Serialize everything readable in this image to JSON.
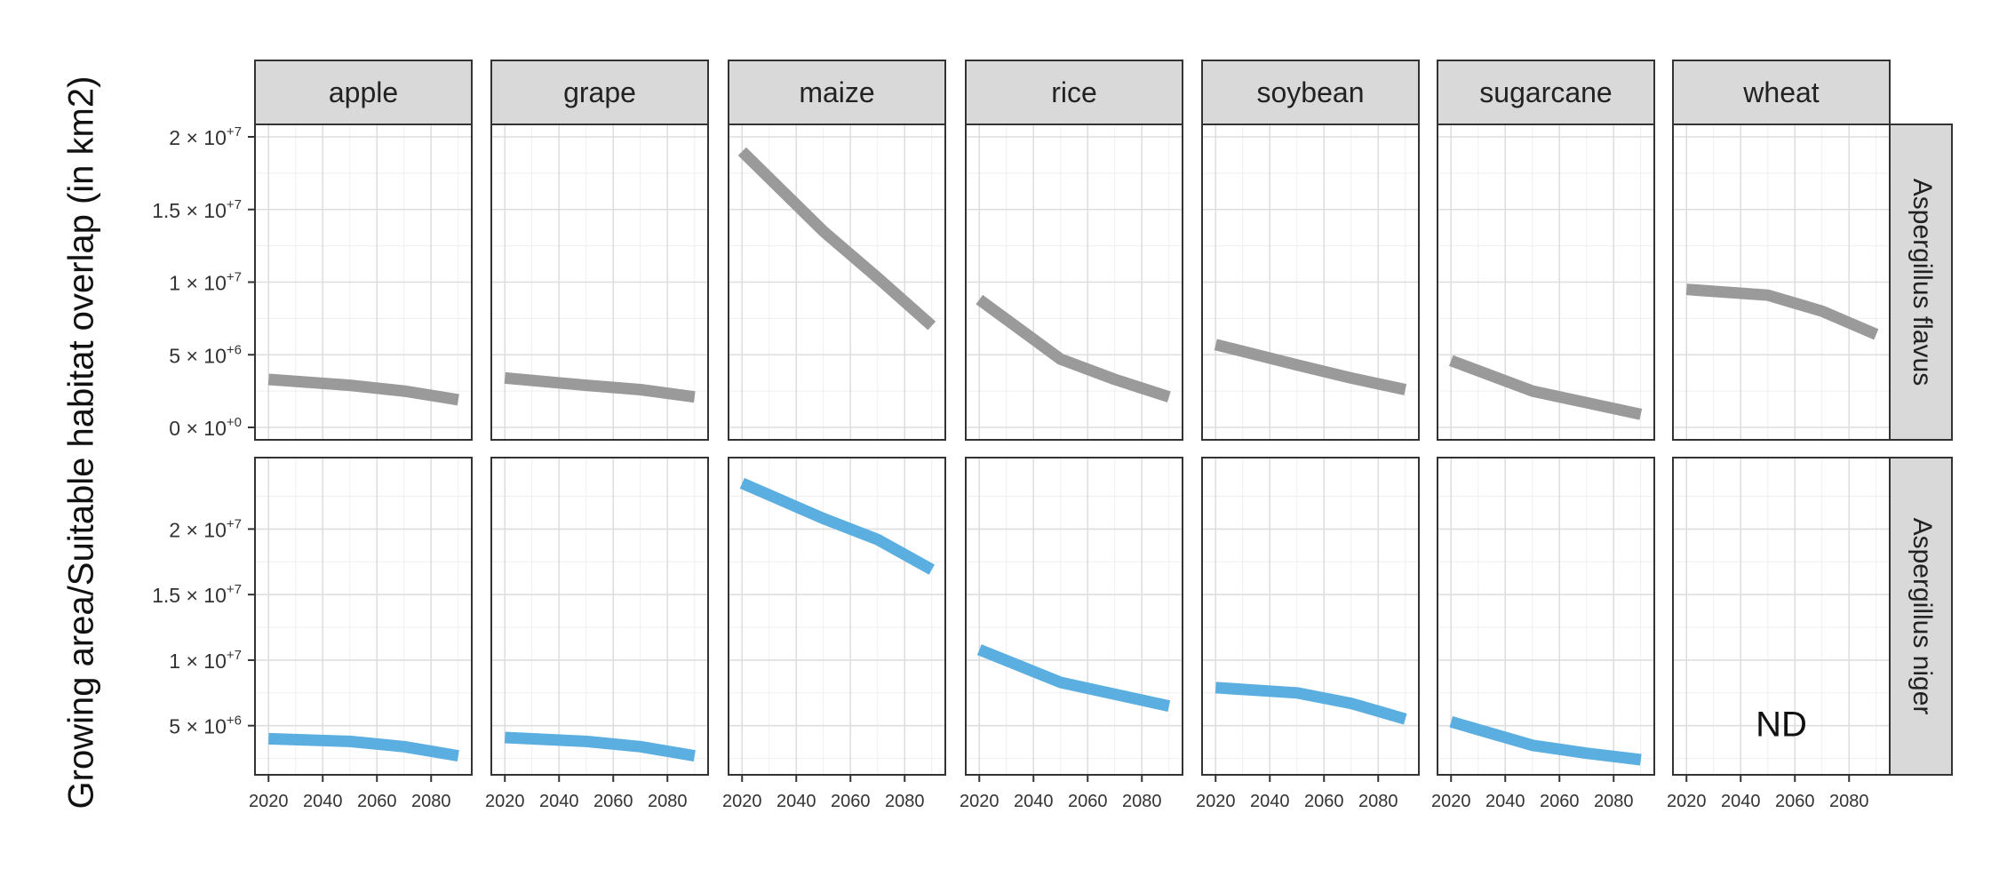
{
  "chart_data": {
    "type": "line",
    "ylabel": "Growing area/Suitable habitat overlap (in km2)",
    "xlabel": "",
    "crops": [
      "apple",
      "grape",
      "maize",
      "rice",
      "soybean",
      "sugarcane",
      "wheat"
    ],
    "x_ticks": [
      "2020",
      "2040",
      "2060",
      "2080"
    ],
    "xlim": [
      2015,
      2095
    ],
    "grid": true,
    "rows": [
      {
        "name": "Aspergillus flavus",
        "color": "#9a9a9a",
        "ylim": [
          0,
          20000000
        ],
        "y_ticks": [
          {
            "value": 0,
            "mantissa": "0",
            "exp": "+0"
          },
          {
            "value": 5000000,
            "mantissa": "5",
            "exp": "+6"
          },
          {
            "value": 10000000,
            "mantissa": "1",
            "exp": "+7"
          },
          {
            "value": 15000000,
            "mantissa": "1.5",
            "exp": "+7"
          },
          {
            "value": 20000000,
            "mantissa": "2",
            "exp": "+7"
          }
        ],
        "series": [
          {
            "crop": "apple",
            "x": [
              2020,
              2050,
              2070,
              2090
            ],
            "y": [
              3300000,
              2900000,
              2500000,
              1900000
            ]
          },
          {
            "crop": "grape",
            "x": [
              2020,
              2050,
              2070,
              2090
            ],
            "y": [
              3400000,
              2900000,
              2600000,
              2100000
            ]
          },
          {
            "crop": "maize",
            "x": [
              2020,
              2050,
              2070,
              2090
            ],
            "y": [
              19000000,
              13500000,
              10300000,
              7000000
            ]
          },
          {
            "crop": "rice",
            "x": [
              2020,
              2050,
              2070,
              2090
            ],
            "y": [
              8800000,
              4700000,
              3300000,
              2100000
            ]
          },
          {
            "crop": "soybean",
            "x": [
              2020,
              2050,
              2070,
              2090
            ],
            "y": [
              5700000,
              4300000,
              3400000,
              2600000
            ]
          },
          {
            "crop": "sugarcane",
            "x": [
              2020,
              2050,
              2070,
              2090
            ],
            "y": [
              4600000,
              2500000,
              1700000,
              900000
            ]
          },
          {
            "crop": "wheat",
            "x": [
              2020,
              2050,
              2070,
              2090
            ],
            "y": [
              9500000,
              9100000,
              8000000,
              6400000
            ]
          }
        ],
        "annotations": []
      },
      {
        "name": "Aspergillus niger",
        "color": "#5aaee0",
        "ylim": [
          2200000,
          24500000
        ],
        "y_ticks": [
          {
            "value": 5000000,
            "mantissa": "5",
            "exp": "+6"
          },
          {
            "value": 10000000,
            "mantissa": "1",
            "exp": "+7"
          },
          {
            "value": 15000000,
            "mantissa": "1.5",
            "exp": "+7"
          },
          {
            "value": 20000000,
            "mantissa": "2",
            "exp": "+7"
          }
        ],
        "series": [
          {
            "crop": "apple",
            "x": [
              2020,
              2050,
              2070,
              2090
            ],
            "y": [
              4000000,
              3800000,
              3400000,
              2700000
            ]
          },
          {
            "crop": "grape",
            "x": [
              2020,
              2050,
              2070,
              2090
            ],
            "y": [
              4100000,
              3800000,
              3400000,
              2700000
            ]
          },
          {
            "crop": "maize",
            "x": [
              2020,
              2050,
              2070,
              2090
            ],
            "y": [
              23500000,
              20800000,
              19200000,
              16900000
            ]
          },
          {
            "crop": "rice",
            "x": [
              2020,
              2050,
              2070,
              2090
            ],
            "y": [
              10800000,
              8300000,
              7400000,
              6500000
            ]
          },
          {
            "crop": "soybean",
            "x": [
              2020,
              2050,
              2070,
              2090
            ],
            "y": [
              7900000,
              7500000,
              6700000,
              5500000
            ]
          },
          {
            "crop": "sugarcane",
            "x": [
              2020,
              2050,
              2070,
              2090
            ],
            "y": [
              5300000,
              3500000,
              2900000,
              2400000
            ]
          },
          {
            "crop": "wheat",
            "x": [],
            "y": []
          }
        ],
        "annotations": [
          {
            "crop": "wheat",
            "text": "ND"
          }
        ]
      }
    ]
  }
}
